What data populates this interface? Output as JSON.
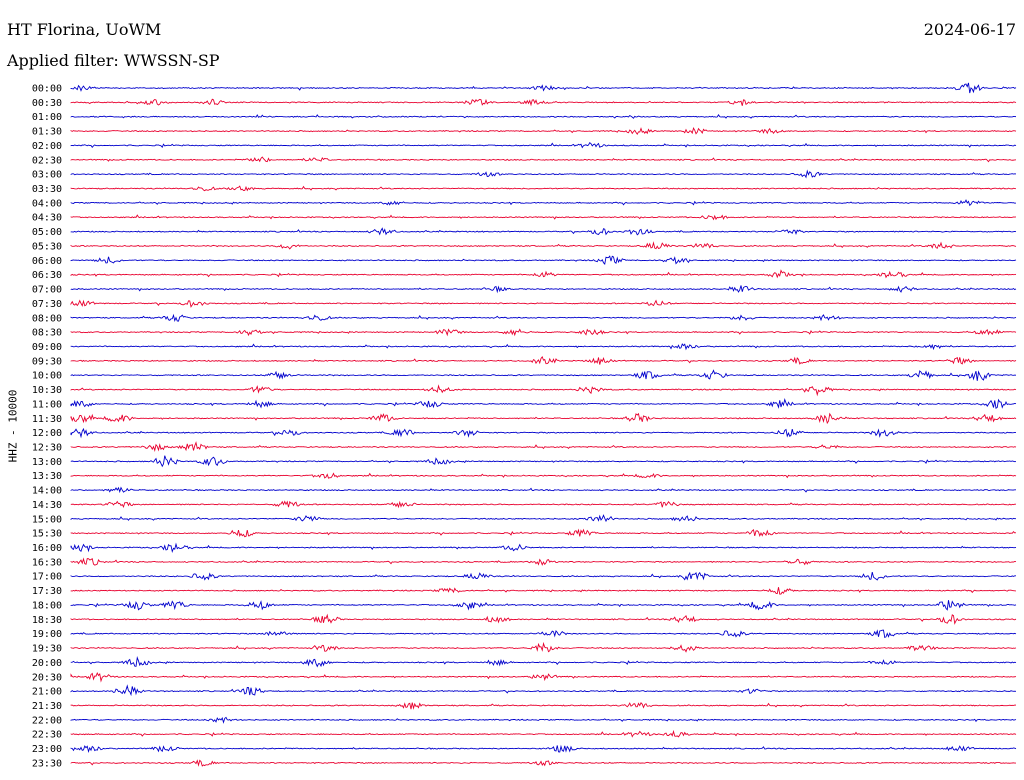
{
  "header": {
    "station": "HT Florina, UoWM",
    "date": "2024-06-17",
    "filter_label": "Applied filter: WWSSN-SP"
  },
  "chart_data": {
    "type": "line",
    "title": "HT Florina, UoWM",
    "ylabel": "HHZ - 10000",
    "trace_colors": [
      "#0000cc",
      "#e8002e"
    ],
    "rows": [
      {
        "label": "00:00",
        "events": [
          [
            0.01,
            0.5
          ],
          [
            0.5,
            0.4
          ],
          [
            0.95,
            1.0
          ]
        ]
      },
      {
        "label": "00:30",
        "events": [
          [
            0.09,
            0.6
          ],
          [
            0.15,
            0.5
          ],
          [
            0.43,
            0.6
          ],
          [
            0.49,
            0.5
          ],
          [
            0.71,
            0.4
          ]
        ]
      },
      {
        "label": "01:00",
        "events": []
      },
      {
        "label": "01:30",
        "events": [
          [
            0.6,
            0.5
          ],
          [
            0.66,
            0.5
          ],
          [
            0.74,
            0.4
          ]
        ]
      },
      {
        "label": "02:00",
        "events": [
          [
            0.55,
            0.5
          ]
        ]
      },
      {
        "label": "02:30",
        "events": [
          [
            0.2,
            0.5
          ],
          [
            0.26,
            0.4
          ]
        ]
      },
      {
        "label": "03:00",
        "events": [
          [
            0.44,
            0.4
          ],
          [
            0.78,
            0.6
          ]
        ]
      },
      {
        "label": "03:30",
        "events": [
          [
            0.14,
            0.4
          ],
          [
            0.18,
            0.4
          ]
        ]
      },
      {
        "label": "04:00",
        "events": [
          [
            0.34,
            0.4
          ],
          [
            0.95,
            0.5
          ]
        ]
      },
      {
        "label": "04:30",
        "events": [
          [
            0.68,
            0.5
          ]
        ]
      },
      {
        "label": "05:00",
        "events": [
          [
            0.33,
            0.6
          ],
          [
            0.56,
            0.6
          ],
          [
            0.6,
            0.6
          ],
          [
            0.76,
            0.5
          ]
        ]
      },
      {
        "label": "05:30",
        "events": [
          [
            0.23,
            0.5
          ],
          [
            0.62,
            0.8
          ],
          [
            0.67,
            0.5
          ],
          [
            0.92,
            0.6
          ]
        ]
      },
      {
        "label": "06:00",
        "events": [
          [
            0.04,
            0.6
          ],
          [
            0.57,
            0.8
          ],
          [
            0.64,
            0.7
          ]
        ]
      },
      {
        "label": "06:30",
        "events": [
          [
            0.5,
            0.5
          ],
          [
            0.75,
            0.6
          ],
          [
            0.87,
            0.7
          ]
        ]
      },
      {
        "label": "07:00",
        "events": [
          [
            0.45,
            0.4
          ],
          [
            0.71,
            0.6
          ],
          [
            0.88,
            0.5
          ]
        ]
      },
      {
        "label": "07:30",
        "events": [
          [
            0.01,
            0.6
          ],
          [
            0.13,
            0.6
          ],
          [
            0.62,
            0.5
          ]
        ]
      },
      {
        "label": "08:00",
        "events": [
          [
            0.11,
            0.7
          ],
          [
            0.26,
            0.6
          ],
          [
            0.71,
            0.5
          ],
          [
            0.8,
            0.6
          ]
        ]
      },
      {
        "label": "08:30",
        "events": [
          [
            0.19,
            0.6
          ],
          [
            0.4,
            0.6
          ],
          [
            0.47,
            0.6
          ],
          [
            0.55,
            0.6
          ],
          [
            0.97,
            0.6
          ]
        ]
      },
      {
        "label": "09:00",
        "events": [
          [
            0.65,
            0.5
          ],
          [
            0.91,
            0.5
          ]
        ]
      },
      {
        "label": "09:30",
        "events": [
          [
            0.5,
            0.6
          ],
          [
            0.56,
            0.6
          ],
          [
            0.77,
            0.5
          ],
          [
            0.94,
            0.6
          ]
        ]
      },
      {
        "label": "10:00",
        "events": [
          [
            0.22,
            0.7
          ],
          [
            0.61,
            0.8
          ],
          [
            0.68,
            0.8
          ],
          [
            0.9,
            0.8
          ],
          [
            0.96,
            1.0
          ]
        ]
      },
      {
        "label": "10:30",
        "events": [
          [
            0.2,
            0.6
          ],
          [
            0.39,
            0.6
          ],
          [
            0.55,
            0.6
          ],
          [
            0.79,
            0.9
          ]
        ]
      },
      {
        "label": "11:00",
        "events": [
          [
            0.01,
            0.7
          ],
          [
            0.2,
            0.6
          ],
          [
            0.38,
            0.7
          ],
          [
            0.75,
            0.6
          ],
          [
            0.98,
            0.8
          ]
        ]
      },
      {
        "label": "11:30",
        "events": [
          [
            0.01,
            0.8
          ],
          [
            0.05,
            0.8
          ],
          [
            0.33,
            0.7
          ],
          [
            0.6,
            0.8
          ],
          [
            0.8,
            0.9
          ],
          [
            0.97,
            0.9
          ]
        ]
      },
      {
        "label": "12:00",
        "events": [
          [
            0.01,
            0.8
          ],
          [
            0.23,
            0.7
          ],
          [
            0.35,
            0.8
          ],
          [
            0.42,
            0.6
          ],
          [
            0.76,
            0.8
          ],
          [
            0.86,
            0.8
          ]
        ]
      },
      {
        "label": "12:30",
        "events": [
          [
            0.09,
            0.6
          ],
          [
            0.13,
            0.9
          ],
          [
            0.8,
            0.4
          ]
        ]
      },
      {
        "label": "13:00",
        "events": [
          [
            0.1,
            1.0
          ],
          [
            0.15,
            0.9
          ],
          [
            0.39,
            0.6
          ]
        ]
      },
      {
        "label": "13:30",
        "events": [
          [
            0.27,
            0.6
          ],
          [
            0.61,
            0.4
          ]
        ]
      },
      {
        "label": "14:00",
        "events": [
          [
            0.05,
            0.5
          ]
        ]
      },
      {
        "label": "14:30",
        "events": [
          [
            0.05,
            0.6
          ],
          [
            0.23,
            0.7
          ],
          [
            0.35,
            0.6
          ],
          [
            0.63,
            0.6
          ]
        ]
      },
      {
        "label": "15:00",
        "events": [
          [
            0.25,
            0.6
          ],
          [
            0.56,
            0.8
          ],
          [
            0.65,
            0.5
          ]
        ]
      },
      {
        "label": "15:30",
        "events": [
          [
            0.18,
            0.8
          ],
          [
            0.54,
            0.7
          ],
          [
            0.73,
            0.9
          ]
        ]
      },
      {
        "label": "16:00",
        "events": [
          [
            0.01,
            0.7
          ],
          [
            0.11,
            0.8
          ],
          [
            0.47,
            0.6
          ]
        ]
      },
      {
        "label": "16:30",
        "events": [
          [
            0.02,
            0.7
          ],
          [
            0.5,
            0.6
          ],
          [
            0.77,
            0.6
          ]
        ]
      },
      {
        "label": "17:00",
        "events": [
          [
            0.14,
            0.7
          ],
          [
            0.43,
            0.7
          ],
          [
            0.66,
            1.0
          ],
          [
            0.85,
            0.8
          ]
        ]
      },
      {
        "label": "17:30",
        "events": [
          [
            0.4,
            0.5
          ],
          [
            0.75,
            0.6
          ]
        ]
      },
      {
        "label": "18:00",
        "events": [
          [
            0.07,
            0.9
          ],
          [
            0.11,
            0.8
          ],
          [
            0.2,
            0.8
          ],
          [
            0.42,
            0.8
          ],
          [
            0.73,
            0.9
          ],
          [
            0.93,
            1.0
          ]
        ]
      },
      {
        "label": "18:30",
        "events": [
          [
            0.27,
            0.8
          ],
          [
            0.45,
            0.7
          ],
          [
            0.65,
            0.8
          ],
          [
            0.93,
            0.9
          ]
        ]
      },
      {
        "label": "19:00",
        "events": [
          [
            0.22,
            0.7
          ],
          [
            0.51,
            0.6
          ],
          [
            0.7,
            0.7
          ],
          [
            0.86,
            0.8
          ]
        ]
      },
      {
        "label": "19:30",
        "events": [
          [
            0.27,
            0.6
          ],
          [
            0.5,
            0.9
          ],
          [
            0.65,
            0.6
          ],
          [
            0.9,
            0.6
          ]
        ]
      },
      {
        "label": "20:00",
        "events": [
          [
            0.07,
            0.8
          ],
          [
            0.26,
            0.9
          ],
          [
            0.45,
            0.5
          ],
          [
            0.86,
            0.5
          ]
        ]
      },
      {
        "label": "20:30",
        "events": [
          [
            0.03,
            0.7
          ],
          [
            0.5,
            0.6
          ]
        ]
      },
      {
        "label": "21:00",
        "events": [
          [
            0.06,
            1.0
          ],
          [
            0.19,
            0.8
          ],
          [
            0.72,
            0.4
          ]
        ]
      },
      {
        "label": "21:30",
        "events": [
          [
            0.36,
            0.6
          ],
          [
            0.6,
            0.6
          ]
        ]
      },
      {
        "label": "22:00",
        "events": [
          [
            0.16,
            0.5
          ]
        ]
      },
      {
        "label": "22:30",
        "events": [
          [
            0.6,
            0.5
          ],
          [
            0.64,
            0.5
          ]
        ]
      },
      {
        "label": "23:00",
        "events": [
          [
            0.02,
            0.6
          ],
          [
            0.1,
            0.5
          ],
          [
            0.52,
            0.7
          ],
          [
            0.94,
            0.5
          ]
        ]
      },
      {
        "label": "23:30",
        "events": [
          [
            0.14,
            0.5
          ],
          [
            0.5,
            0.4
          ]
        ]
      }
    ]
  }
}
